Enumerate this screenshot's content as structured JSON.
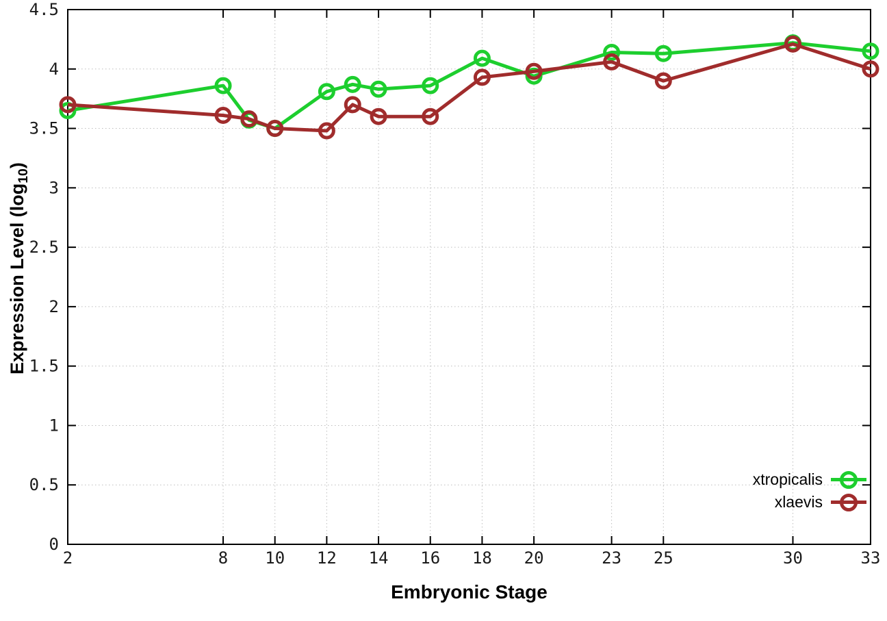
{
  "chart_data": {
    "type": "line",
    "title": "",
    "xlabel": "Embryonic Stage",
    "ylabel": "Expression Level (log10)",
    "ylabel_parts": {
      "pre": "Expression Level (log",
      "sub": "10",
      "post": ")"
    },
    "x": [
      2,
      8,
      9,
      10,
      12,
      13,
      14,
      16,
      18,
      20,
      23,
      25,
      30,
      33
    ],
    "series": [
      {
        "name": "xtropicalis",
        "color": "#1dce2e",
        "values": [
          3.65,
          3.86,
          3.57,
          3.5,
          3.81,
          3.87,
          3.83,
          3.86,
          4.09,
          3.94,
          4.14,
          4.13,
          4.22,
          4.15
        ]
      },
      {
        "name": "xlaevis",
        "color": "#a02c2c",
        "values": [
          3.7,
          3.61,
          3.58,
          3.5,
          3.48,
          3.7,
          3.6,
          3.6,
          3.93,
          3.98,
          4.06,
          3.9,
          4.21,
          4.0
        ]
      }
    ],
    "x_ticks": [
      2,
      8,
      10,
      12,
      14,
      16,
      18,
      20,
      23,
      25,
      30,
      33
    ],
    "y_ticks": [
      "0",
      "0.5",
      "1",
      "1.5",
      "2",
      "2.5",
      "3",
      "3.5",
      "4",
      "4.5"
    ],
    "xlim": [
      2,
      33
    ],
    "ylim": [
      0,
      4.5
    ],
    "grid": "dotted",
    "grid_color": "#bdbdbd",
    "axis_color": "#000000",
    "background": "#ffffff",
    "marker": "open-circle",
    "line_width": 5,
    "legend_position": "inside-bottom-right",
    "legend_entries": [
      "xtropicalis",
      "xlaevis"
    ]
  }
}
